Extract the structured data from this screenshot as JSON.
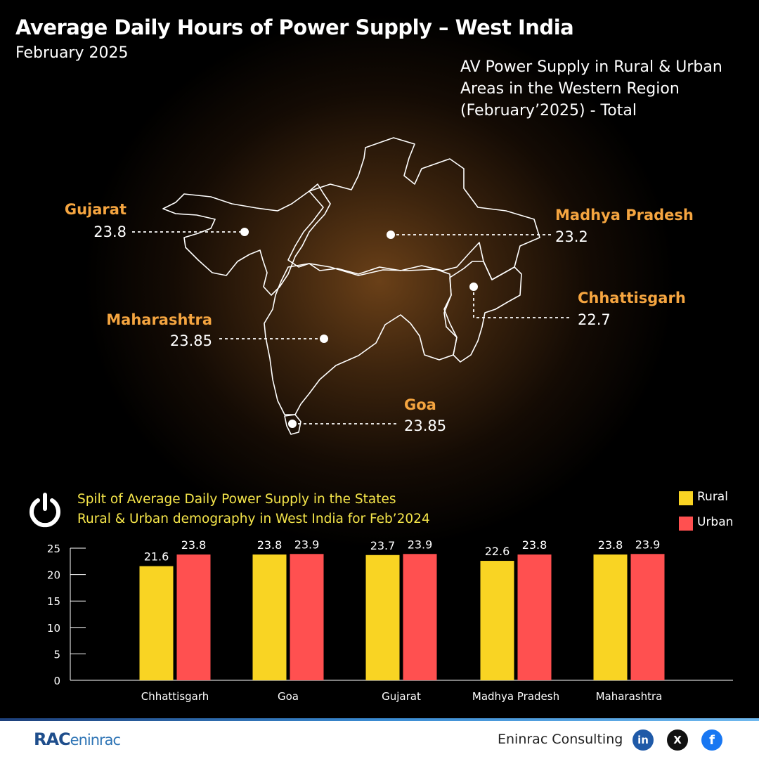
{
  "header": {
    "title": "Average Daily Hours of Power Supply – West India",
    "subtitle": "February 2025"
  },
  "map": {
    "caption_lines": [
      "AV Power Supply in Rural & Urban",
      "Areas in the Western Region",
      "(February’2025) - Total"
    ],
    "states": [
      {
        "name": "Gujarat",
        "value": "23.8"
      },
      {
        "name": "Madhya Pradesh",
        "value": "23.2"
      },
      {
        "name": "Chhattisgarh",
        "value": "22.7"
      },
      {
        "name": "Maharashtra",
        "value": "23.85"
      },
      {
        "name": "Goa",
        "value": "23.85"
      }
    ]
  },
  "chart_caption_lines": [
    "Spilt of Average Daily Power Supply in the States",
    "Rural & Urban demography in West India for Feb’2024"
  ],
  "chart_data": {
    "type": "bar",
    "title": "Spilt of Average Daily Power Supply in the States Rural & Urban demography in West India for Feb’2024",
    "categories": [
      "Chhattisgarh",
      "Goa",
      "Gujarat",
      "Madhya Pradesh",
      "Maharashtra"
    ],
    "series": [
      {
        "name": "Rural",
        "color": "#f9d423",
        "values": [
          21.6,
          23.8,
          23.7,
          22.6,
          23.8
        ],
        "labels": [
          "21.6",
          "23.8",
          "23.7",
          "22.6",
          "23.8"
        ]
      },
      {
        "name": "Urban",
        "color": "#ff5050",
        "values": [
          23.8,
          23.9,
          23.9,
          23.8,
          23.9
        ],
        "labels": [
          "23.8",
          "23.9",
          "23.9",
          "23.8",
          "23.9"
        ]
      }
    ],
    "ylim": [
      0,
      25
    ],
    "yticks": [
      0,
      5,
      10,
      15,
      20,
      25
    ],
    "grid": false,
    "legend": "top-right",
    "xlabel": "",
    "ylabel": ""
  },
  "footer": {
    "logo_main": "RAC",
    "logo_sub": "eninrac",
    "brand": "Eninrac Consulting",
    "social": [
      "in",
      "X",
      "f"
    ]
  },
  "colors": {
    "accent": "#f5a540",
    "caption": "#f5e54a",
    "rural": "#f9d423",
    "urban": "#ff5050"
  }
}
